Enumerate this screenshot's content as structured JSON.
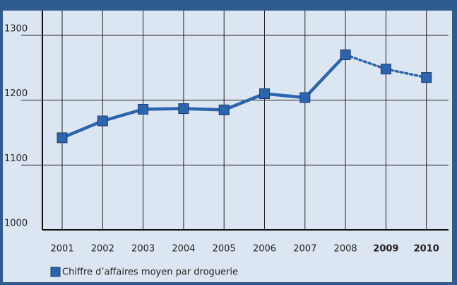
{
  "chart_data": {
    "type": "line",
    "categories": [
      "2001",
      "2002",
      "2003",
      "2004",
      "2005",
      "2006",
      "2007",
      "2008",
      "2009",
      "2010"
    ],
    "series": [
      {
        "name": "Chiffre d’affaires moyen par droguerie",
        "color": "#2c64ae",
        "values": [
          1142,
          1168,
          1186,
          1187,
          1185,
          1210,
          1204,
          1270,
          1248,
          1235
        ],
        "styles": [
          "solid",
          "solid",
          "solid",
          "solid",
          "solid",
          "solid",
          "solid",
          "solid",
          "dotted",
          "dotted"
        ]
      }
    ],
    "ylim": [
      1000,
      1300
    ],
    "yticks": [
      1000,
      1100,
      1200,
      1300
    ],
    "grid": true
  }
}
